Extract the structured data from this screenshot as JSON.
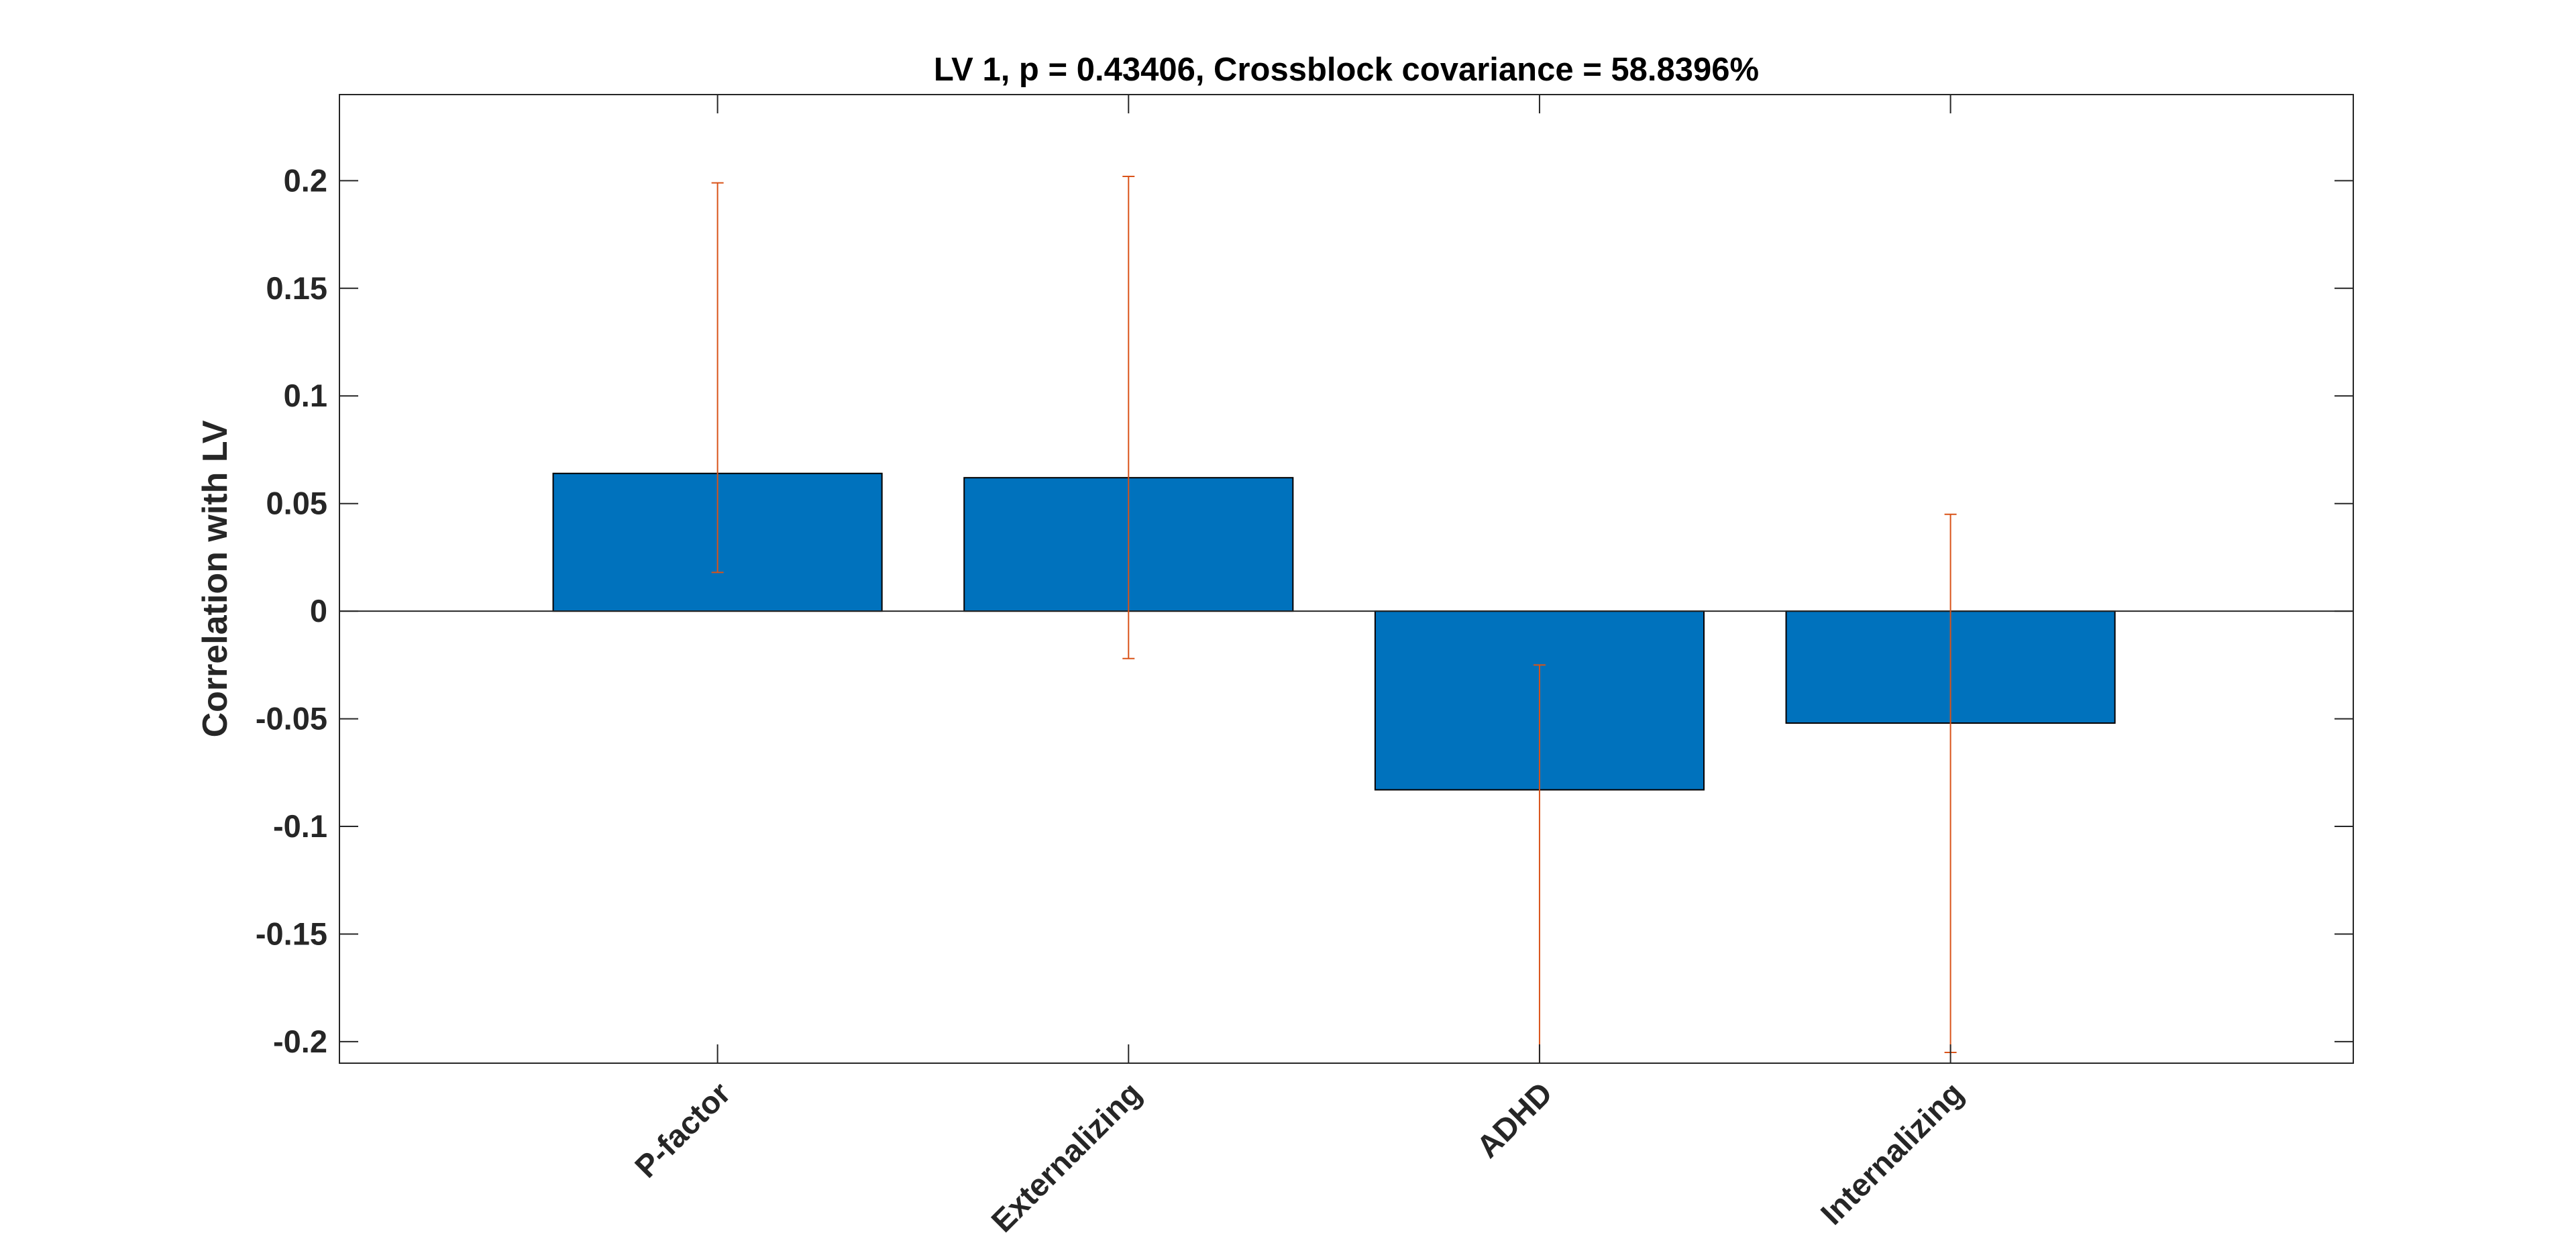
{
  "chart_data": {
    "type": "bar",
    "title": "LV 1, p = 0.43406, Crossblock covariance = 58.8396%",
    "xlabel": "",
    "ylabel": "Correlation with LV",
    "categories": [
      "P-factor",
      "Externalizing",
      "ADHD",
      "Internalizing"
    ],
    "values": [
      0.064,
      0.062,
      -0.083,
      -0.052
    ],
    "error_bars": [
      {
        "low": 0.018,
        "high": 0.199
      },
      {
        "low": -0.022,
        "high": 0.202
      },
      {
        "low": -0.21,
        "high": -0.025
      },
      {
        "low": -0.205,
        "high": 0.045
      }
    ],
    "ylim": [
      -0.21,
      0.24
    ],
    "yticks": [
      -0.2,
      -0.15,
      -0.1,
      -0.05,
      0,
      0.05,
      0.1,
      0.15,
      0.2
    ],
    "ytick_labels": [
      "-0.2",
      "-0.15",
      "-0.1",
      "-0.05",
      "0",
      "0.05",
      "0.1",
      "0.15",
      "0.2"
    ],
    "xlim": [
      0.08,
      4.98
    ],
    "bar_color": "#0072BD",
    "error_color": "#D95319",
    "grid": false,
    "legend": "none"
  }
}
